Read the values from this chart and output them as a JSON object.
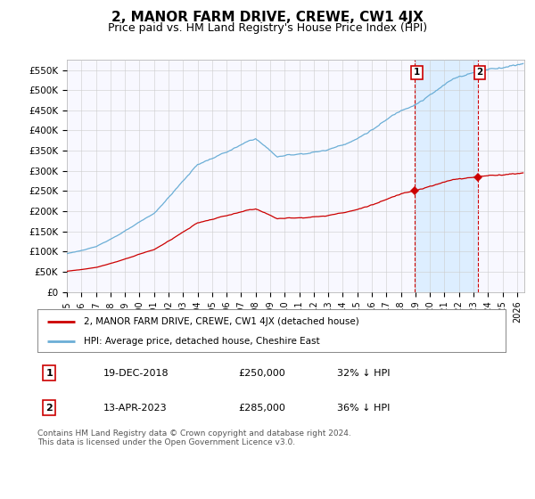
{
  "title": "2, MANOR FARM DRIVE, CREWE, CW1 4JX",
  "subtitle": "Price paid vs. HM Land Registry's House Price Index (HPI)",
  "title_fontsize": 11,
  "subtitle_fontsize": 9,
  "ylabel_ticks": [
    "£0",
    "£50K",
    "£100K",
    "£150K",
    "£200K",
    "£250K",
    "£300K",
    "£350K",
    "£400K",
    "£450K",
    "£500K",
    "£550K"
  ],
  "ytick_values": [
    0,
    50000,
    100000,
    150000,
    200000,
    250000,
    300000,
    350000,
    400000,
    450000,
    500000,
    550000
  ],
  "ylim": [
    0,
    575000
  ],
  "xlim_start": 1995.0,
  "xlim_end": 2026.5,
  "xtick_labels": [
    "1995",
    "1996",
    "1997",
    "1998",
    "1999",
    "2000",
    "2001",
    "2002",
    "2003",
    "2004",
    "2005",
    "2006",
    "2007",
    "2008",
    "2009",
    "2010",
    "2011",
    "2012",
    "2013",
    "2014",
    "2015",
    "2016",
    "2017",
    "2018",
    "2019",
    "2020",
    "2021",
    "2022",
    "2023",
    "2024",
    "2025",
    "2026"
  ],
  "hpi_color": "#6baed6",
  "price_color": "#cc0000",
  "vline_color": "#cc0000",
  "shade_color": "#ddeeff",
  "grid_color": "#cccccc",
  "legend_label_red": "2, MANOR FARM DRIVE, CREWE, CW1 4JX (detached house)",
  "legend_label_blue": "HPI: Average price, detached house, Cheshire East",
  "annotation_1_date": "19-DEC-2018",
  "annotation_1_price": "£250,000",
  "annotation_1_pct": "32% ↓ HPI",
  "annotation_2_date": "13-APR-2023",
  "annotation_2_price": "£285,000",
  "annotation_2_pct": "36% ↓ HPI",
  "footer_text": "Contains HM Land Registry data © Crown copyright and database right 2024.\nThis data is licensed under the Open Government Licence v3.0.",
  "background_color": "#ffffff",
  "plot_bg_color": "#f8f8ff",
  "t1": 2018.96,
  "t2": 2023.29,
  "sale1_price": 250000,
  "sale2_price": 285000
}
